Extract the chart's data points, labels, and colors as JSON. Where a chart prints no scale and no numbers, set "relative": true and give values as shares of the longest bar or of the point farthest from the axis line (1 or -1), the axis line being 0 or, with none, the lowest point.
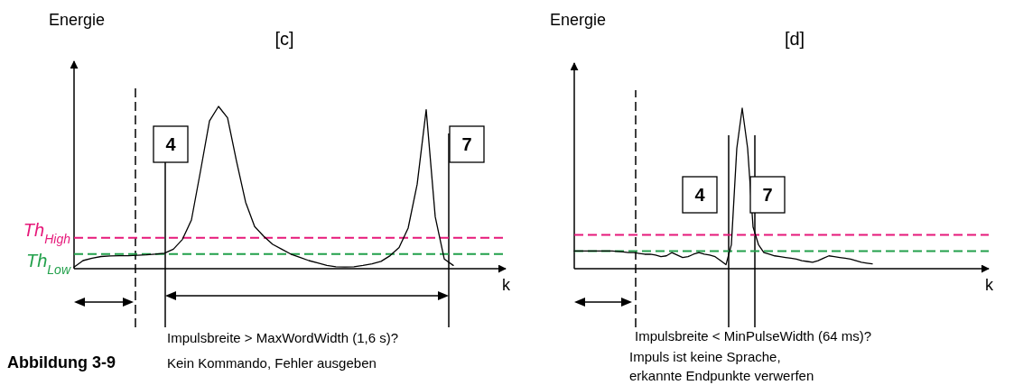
{
  "chart_data": [
    {
      "type": "line",
      "title": "[c]",
      "ylabel": "Energie",
      "xlabel": "k",
      "relative": true,
      "line_style": "solid",
      "categories": [
        null,
        null,
        null,
        null,
        null,
        null,
        null,
        null,
        null,
        null,
        null,
        null,
        null,
        null,
        null,
        null,
        null,
        null,
        null,
        null,
        null,
        null,
        null,
        null,
        null,
        null,
        null,
        null,
        null,
        null,
        null,
        null,
        null,
        null,
        null,
        null,
        null,
        null,
        null,
        null,
        null,
        null,
        null
      ],
      "series": [
        {
          "color": "#000000",
          "values": [
            0.01,
            0.05,
            0.065,
            0.075,
            0.078,
            0.08,
            0.08,
            0.083,
            0.085,
            0.09,
            0.095,
            0.12,
            0.18,
            0.3,
            0.6,
            0.91,
            1.0,
            0.93,
            0.66,
            0.41,
            0.26,
            0.2,
            0.15,
            0.12,
            0.09,
            0.07,
            0.05,
            0.035,
            0.02,
            0.012,
            0.01,
            0.012,
            0.02,
            0.03,
            0.045,
            0.08,
            0.13,
            0.25,
            0.52,
            0.98,
            0.32,
            0.06,
            0.02
          ]
        }
      ],
      "ref_lines": [
        {
          "axis": "y",
          "value": 0.19,
          "label": "Th$_{High}$",
          "color": "#e6197a",
          "line_style": "dashed"
        },
        {
          "axis": "y",
          "value": 0.09,
          "label": "Th$_{Low}$",
          "color": "#22a04b",
          "line_style": "dashed"
        }
      ],
      "annotations": [
        "4",
        "7",
        "Impulsbreite > MaxWordWidth (1,6 s)?",
        "Kein Kommando, Fehler ausgeben",
        "Abbildung 3-9"
      ]
    },
    {
      "type": "line",
      "title": "[d]",
      "ylabel": "Energie",
      "xlabel": "k",
      "relative": true,
      "line_style": "solid",
      "categories": [
        null,
        null,
        null,
        null,
        null,
        null,
        null,
        null,
        null,
        null,
        null,
        null,
        null,
        null,
        null,
        null,
        null,
        null,
        null,
        null,
        null,
        null,
        null,
        null,
        null,
        null,
        null,
        null,
        null,
        null,
        null,
        null,
        null,
        null,
        null,
        null,
        null,
        null,
        null,
        null,
        null,
        null,
        null,
        null,
        null,
        null,
        null,
        null,
        null,
        null,
        null,
        null,
        null,
        null,
        null,
        null,
        null,
        null,
        null,
        null,
        null,
        null,
        null,
        null,
        null,
        null,
        null,
        null,
        null,
        null,
        null,
        null,
        null,
        null,
        null,
        null
      ],
      "series": [
        {
          "color": "#000000",
          "values": [
            0.11,
            0.11,
            0.11,
            0.11,
            0.11,
            0.11,
            0.11,
            0.11,
            0.108,
            0.105,
            0.1,
            0.1,
            0.095,
            0.09,
            0.09,
            0.085,
            0.075,
            0.08,
            0.1,
            0.085,
            0.07,
            0.075,
            0.09,
            0.1,
            0.09,
            0.085,
            0.075,
            0.05,
            0.025,
            0.15,
            0.75,
            1.0,
            0.75,
            0.26,
            0.15,
            0.1,
            0.09,
            0.08,
            0.075,
            0.07,
            0.065,
            0.06,
            0.05,
            0.045,
            0.04,
            0.05,
            0.065,
            0.08,
            0.075,
            0.07,
            0.065,
            0.06,
            0.05,
            0.04,
            0.035,
            0.03,
            null,
            null,
            null,
            null,
            null,
            null,
            null,
            null,
            null,
            null,
            null,
            null,
            null,
            null,
            null,
            null,
            null,
            null,
            null,
            null
          ]
        }
      ],
      "ref_lines": [
        {
          "axis": "y",
          "value": 0.21,
          "color": "#e6197a",
          "line_style": "dashed"
        },
        {
          "axis": "y",
          "value": 0.11,
          "color": "#22a04b",
          "line_style": "dashed"
        }
      ],
      "annotations": [
        "4",
        "7",
        "Impulsbreite < MinPulseWidth (64 ms)?",
        "Impuls ist keine Sprache,",
        "erkannte Endpunkte verwerfen"
      ]
    }
  ]
}
